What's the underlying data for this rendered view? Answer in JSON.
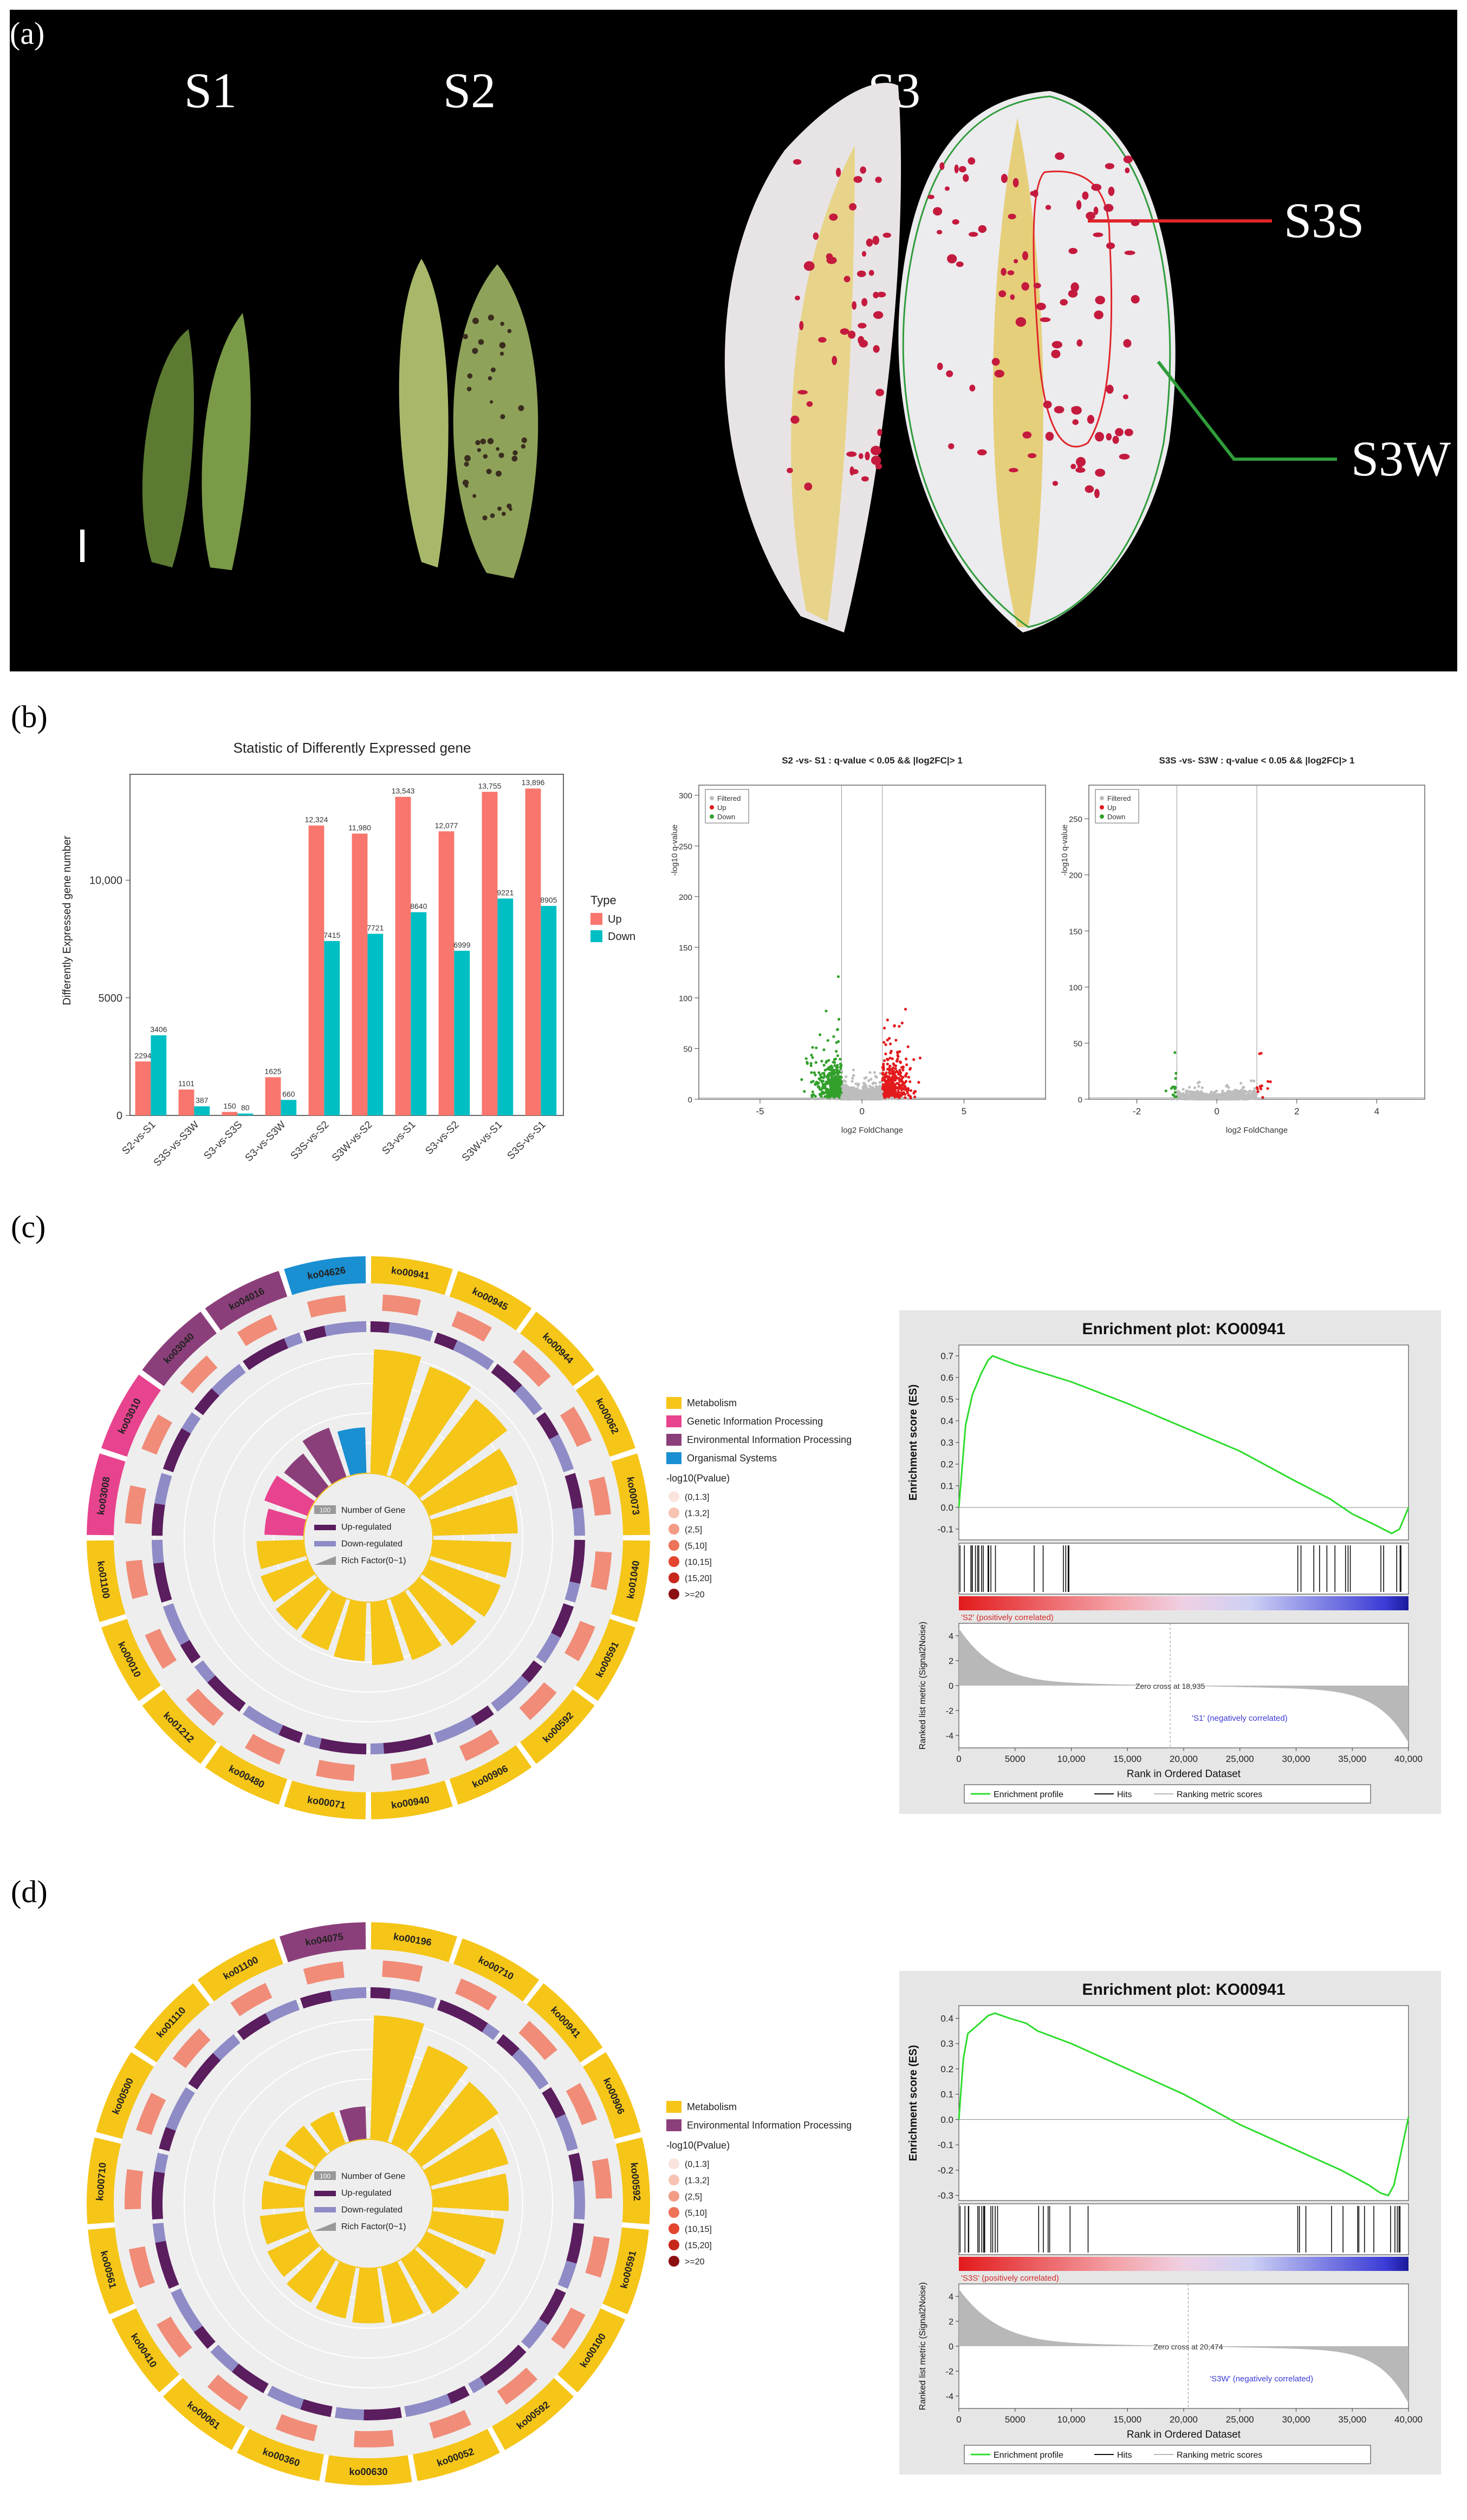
{
  "panels": {
    "a": "(a)",
    "b": "(b)",
    "c": "(c)",
    "d": "(d)"
  },
  "photo": {
    "stages": [
      "S1",
      "S2",
      "S3"
    ],
    "regions": [
      "S3S",
      "S3W"
    ]
  },
  "bar_chart": {
    "title": "Statistic of Differently Expressed gene",
    "ylabel": "Differently Expressed gene number",
    "legend_title": "Type",
    "legend": [
      "Up",
      "Down"
    ],
    "colors": {
      "up": "#f8766d",
      "down": "#00bfc4"
    }
  },
  "volcano": [
    {
      "title": "S2 -vs- S1 : q-value < 0.05 && |log2FC|> 1",
      "ylabel": "-log10 q-value",
      "xlabel": "log2 FoldChange",
      "legend": [
        "Filtered",
        "Up",
        "Down"
      ],
      "xticks": [
        "-5",
        "0",
        "5"
      ],
      "yticks": [
        "0",
        "50",
        "100",
        "150",
        "200",
        "250",
        "300"
      ]
    },
    {
      "title": "S3S -vs- S3W : q-value < 0.05 && |log2FC|> 1",
      "ylabel": "-log10 q-value",
      "xlabel": "log2 FoldChange",
      "legend": [
        "Filtered",
        "Up",
        "Down"
      ],
      "xticks": [
        "-2",
        "0",
        "2",
        "4"
      ],
      "yticks": [
        "0",
        "50",
        "100",
        "150",
        "200",
        "250"
      ]
    }
  ],
  "circos_legend_c": {
    "categories": [
      "Metabolism",
      "Genetic Information Processing",
      "Environmental Information Processing",
      "Organismal Systems"
    ],
    "colors": [
      "#f5c518",
      "#e8438e",
      "#8b3f7a",
      "#1a8fd1"
    ],
    "items": [
      "Number of Gene",
      "Up-regulated",
      "Down-regulated",
      "Rich Factor(0~1)"
    ],
    "pval_title": "-log10(Pvalue)",
    "pval_bins": [
      "(0,1.3]",
      "(1.3,2]",
      "(2,5]",
      "(5,10]",
      "(10,15]",
      "(15,20]",
      ">=20"
    ],
    "number_badge": "100"
  },
  "circos_legend_d": {
    "categories": [
      "Metabolism",
      "Environmental Information Processing"
    ],
    "colors": [
      "#f5c518",
      "#8b3f7a"
    ],
    "items": [
      "Number of Gene",
      "Up-regulated",
      "Down-regulated",
      "Rich Factor(0~1)"
    ],
    "pval_title": "-log10(Pvalue)",
    "pval_bins": [
      "(0,1.3]",
      "(1.3,2]",
      "(2,5]",
      "(5,10]",
      "(10,15]",
      "(15,20]",
      ">=20"
    ],
    "number_badge": "100"
  },
  "circos_c": {
    "ko": [
      "ko00941",
      "ko00945",
      "ko00944",
      "ko00062",
      "ko00073",
      "ko01040",
      "ko00591",
      "ko00592",
      "ko00906",
      "ko00940",
      "ko00071",
      "ko00480",
      "ko01212",
      "ko00010",
      "ko01100",
      "ko03008",
      "ko03010",
      "ko03040",
      "ko04016",
      "ko04626"
    ]
  },
  "circos_d": {
    "ko": [
      "ko00196",
      "ko00710",
      "ko00941",
      "ko00906",
      "ko00592",
      "ko00591",
      "ko00100",
      "ko00592",
      "ko00052",
      "ko00630",
      "ko00360",
      "ko00061",
      "ko00410",
      "ko00561",
      "ko00710",
      "ko00500",
      "ko01110",
      "ko01100",
      "ko04075"
    ]
  },
  "gsea_c": {
    "title": "Enrichment plot: KO00941",
    "es_label": "Enrichment score (ES)",
    "metric_label": "Ranked list metric (Signal2Noise)",
    "xlabel": "Rank in Ordered Dataset",
    "pos_label": "'S2' (positively correlated)",
    "neg_label": "'S1' (negatively correlated)",
    "zero_cross": "Zero cross at 18,935",
    "legend": [
      "Enrichment profile",
      "Hits",
      "Ranking metric scores"
    ],
    "es_ticks": [
      "0.7",
      "0.6",
      "0.5",
      "0.4",
      "0.3",
      "0.2",
      "0.1",
      "0.0",
      "-0.1"
    ],
    "metric_ticks": [
      "4",
      "2",
      "0",
      "-2",
      "-4"
    ],
    "x_ticks": [
      "0",
      "5000",
      "10,000",
      "15,000",
      "20,000",
      "25,000",
      "30,000",
      "35,000",
      "40,000"
    ]
  },
  "gsea_d": {
    "title": "Enrichment plot: KO00941",
    "es_label": "Enrichment score (ES)",
    "metric_label": "Ranked list metric (Signal2Noise)",
    "xlabel": "Rank in Ordered Dataset",
    "pos_label": "'S3S' (positively correlated)",
    "neg_label": "'S3W' (negatively correlated)",
    "zero_cross": "Zero cross at 20,474",
    "legend": [
      "Enrichment profile",
      "Hits",
      "Ranking metric scores"
    ],
    "es_ticks": [
      "0.4",
      "0.3",
      "0.2",
      "0.1",
      "0.0",
      "-0.1",
      "-0.2",
      "-0.3"
    ],
    "metric_ticks": [
      "4",
      "2",
      "0",
      "-2",
      "-4"
    ],
    "x_ticks": [
      "0",
      "5000",
      "10,000",
      "15,000",
      "20,000",
      "25,000",
      "30,000",
      "35,000",
      "40,000"
    ]
  },
  "chart_data": [
    {
      "type": "bar",
      "title": "Statistic of Differently Expressed gene",
      "ylabel": "Differently Expressed gene number",
      "ylim": [
        0,
        14500
      ],
      "categories": [
        "S2-vs-S1",
        "S3S-vs-S3W",
        "S3-vs-S3S",
        "S3-vs-S3W",
        "S3S-vs-S2",
        "S3W-vs-S2",
        "S3-vs-S1",
        "S3-vs-S2",
        "S3W-vs-S1",
        "S3S-vs-S1"
      ],
      "series": [
        {
          "name": "Up",
          "values": [
            2294,
            1101,
            150,
            1625,
            12324,
            11980,
            13543,
            12077,
            13755,
            13896
          ],
          "labels": [
            "2294",
            "1101",
            "150",
            "1625",
            "12,324",
            "11,980",
            "13,543",
            "12,077",
            "13,755",
            "13,896"
          ]
        },
        {
          "name": "Down",
          "values": [
            3406,
            387,
            80,
            660,
            7415,
            7721,
            8640,
            6999,
            9221,
            8905
          ],
          "labels": [
            "3406",
            "387",
            "80",
            "660",
            "7415",
            "7721",
            "8640",
            "6999",
            "9221",
            "8905"
          ]
        }
      ],
      "yticks": [
        "0",
        "5000",
        "10,000"
      ]
    },
    {
      "type": "scatter",
      "title": "S2 -vs- S1 : q-value < 0.05 && |log2FC|> 1",
      "xlabel": "log2 FoldChange",
      "ylabel": "-log10 q-value",
      "xlim": [
        -8,
        9
      ],
      "ylim": [
        0,
        310
      ],
      "series": [
        "Filtered",
        "Up",
        "Down"
      ]
    },
    {
      "type": "scatter",
      "title": "S3S -vs- S3W : q-value < 0.05 && |log2FC|> 1",
      "xlabel": "log2 FoldChange",
      "ylabel": "-log10 q-value",
      "xlim": [
        -3.2,
        5.2
      ],
      "ylim": [
        0,
        280
      ],
      "series": [
        "Filtered",
        "Up",
        "Down"
      ]
    },
    {
      "type": "line",
      "title": "Enrichment plot: KO00941 (S2 vs S1)",
      "xlabel": "Rank in Ordered Dataset",
      "ylabel": "Enrichment score (ES)",
      "xlim": [
        0,
        40000
      ],
      "ylim": [
        -0.15,
        0.75
      ],
      "x": [
        0,
        600,
        1200,
        2000,
        2600,
        3000,
        5000,
        10000,
        15000,
        20000,
        25000,
        30000,
        33000,
        35000,
        37000,
        38500,
        39200,
        40000
      ],
      "y": [
        0,
        0.38,
        0.52,
        0.62,
        0.68,
        0.7,
        0.66,
        0.58,
        0.48,
        0.37,
        0.26,
        0.12,
        0.04,
        -0.03,
        -0.08,
        -0.12,
        -0.1,
        0.0
      ]
    },
    {
      "type": "line",
      "title": "Enrichment plot: KO00941 (S3S vs S3W)",
      "xlabel": "Rank in Ordered Dataset",
      "ylabel": "Enrichment score (ES)",
      "xlim": [
        0,
        40000
      ],
      "ylim": [
        -0.32,
        0.45
      ],
      "x": [
        0,
        400,
        800,
        1600,
        2600,
        3200,
        4500,
        6000,
        7000,
        10000,
        15000,
        20000,
        25000,
        30000,
        34000,
        36500,
        37500,
        38200,
        38700,
        39100,
        40000
      ],
      "y": [
        0,
        0.24,
        0.34,
        0.37,
        0.41,
        0.42,
        0.4,
        0.38,
        0.35,
        0.3,
        0.2,
        0.1,
        -0.02,
        -0.12,
        -0.2,
        -0.26,
        -0.29,
        -0.3,
        -0.26,
        -0.18,
        0.01
      ]
    }
  ]
}
